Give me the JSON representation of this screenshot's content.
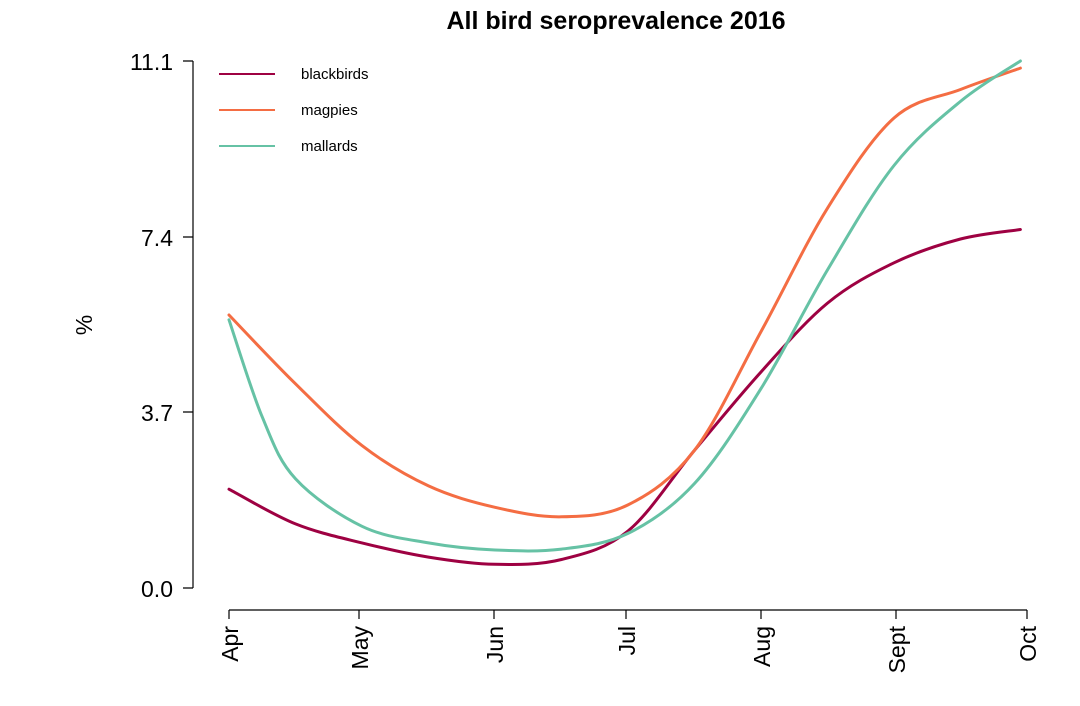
{
  "chart_data": {
    "type": "line",
    "title": "All bird seroprevalence 2016",
    "xlabel": "",
    "ylabel": "%",
    "x_ticks": [
      "Apr",
      "May",
      "Jun",
      "Jul",
      "Aug",
      "Sept",
      "Oct"
    ],
    "y_ticks": [
      "0.0",
      "3.7",
      "7.4",
      "11.1"
    ],
    "y_tick_values": [
      0.0,
      3.7,
      7.4,
      11.1
    ],
    "ylim": [
      0.0,
      11.1
    ],
    "xlim": [
      0,
      6
    ],
    "legend_position": "top-left",
    "grid": false,
    "series": [
      {
        "name": "blackbirds",
        "color": "#9E0142",
        "x": [
          0,
          0.5,
          1,
          1.5,
          2,
          2.5,
          3,
          3.5,
          4,
          4.5,
          5,
          5.5,
          5.95
        ],
        "y": [
          2.08,
          1.35,
          0.95,
          0.65,
          0.5,
          0.6,
          1.2,
          2.9,
          4.55,
          6.0,
          6.85,
          7.35,
          7.55
        ]
      },
      {
        "name": "magpies",
        "color": "#F46D43",
        "x": [
          0,
          0.5,
          1,
          1.5,
          2,
          2.5,
          3,
          3.5,
          4,
          4.5,
          5,
          5.5,
          5.95
        ],
        "y": [
          5.75,
          4.3,
          3.0,
          2.15,
          1.7,
          1.5,
          1.75,
          2.9,
          5.4,
          8.0,
          9.9,
          10.5,
          10.95
        ]
      },
      {
        "name": "mallards",
        "color": "#66C2A5",
        "x": [
          0,
          0.25,
          0.5,
          1,
          1.5,
          2,
          2.5,
          3,
          3.5,
          4,
          4.5,
          5,
          5.5,
          5.95
        ],
        "y": [
          5.65,
          3.6,
          2.3,
          1.3,
          0.95,
          0.8,
          0.82,
          1.15,
          2.2,
          4.2,
          6.7,
          8.9,
          10.25,
          11.1
        ]
      }
    ]
  }
}
